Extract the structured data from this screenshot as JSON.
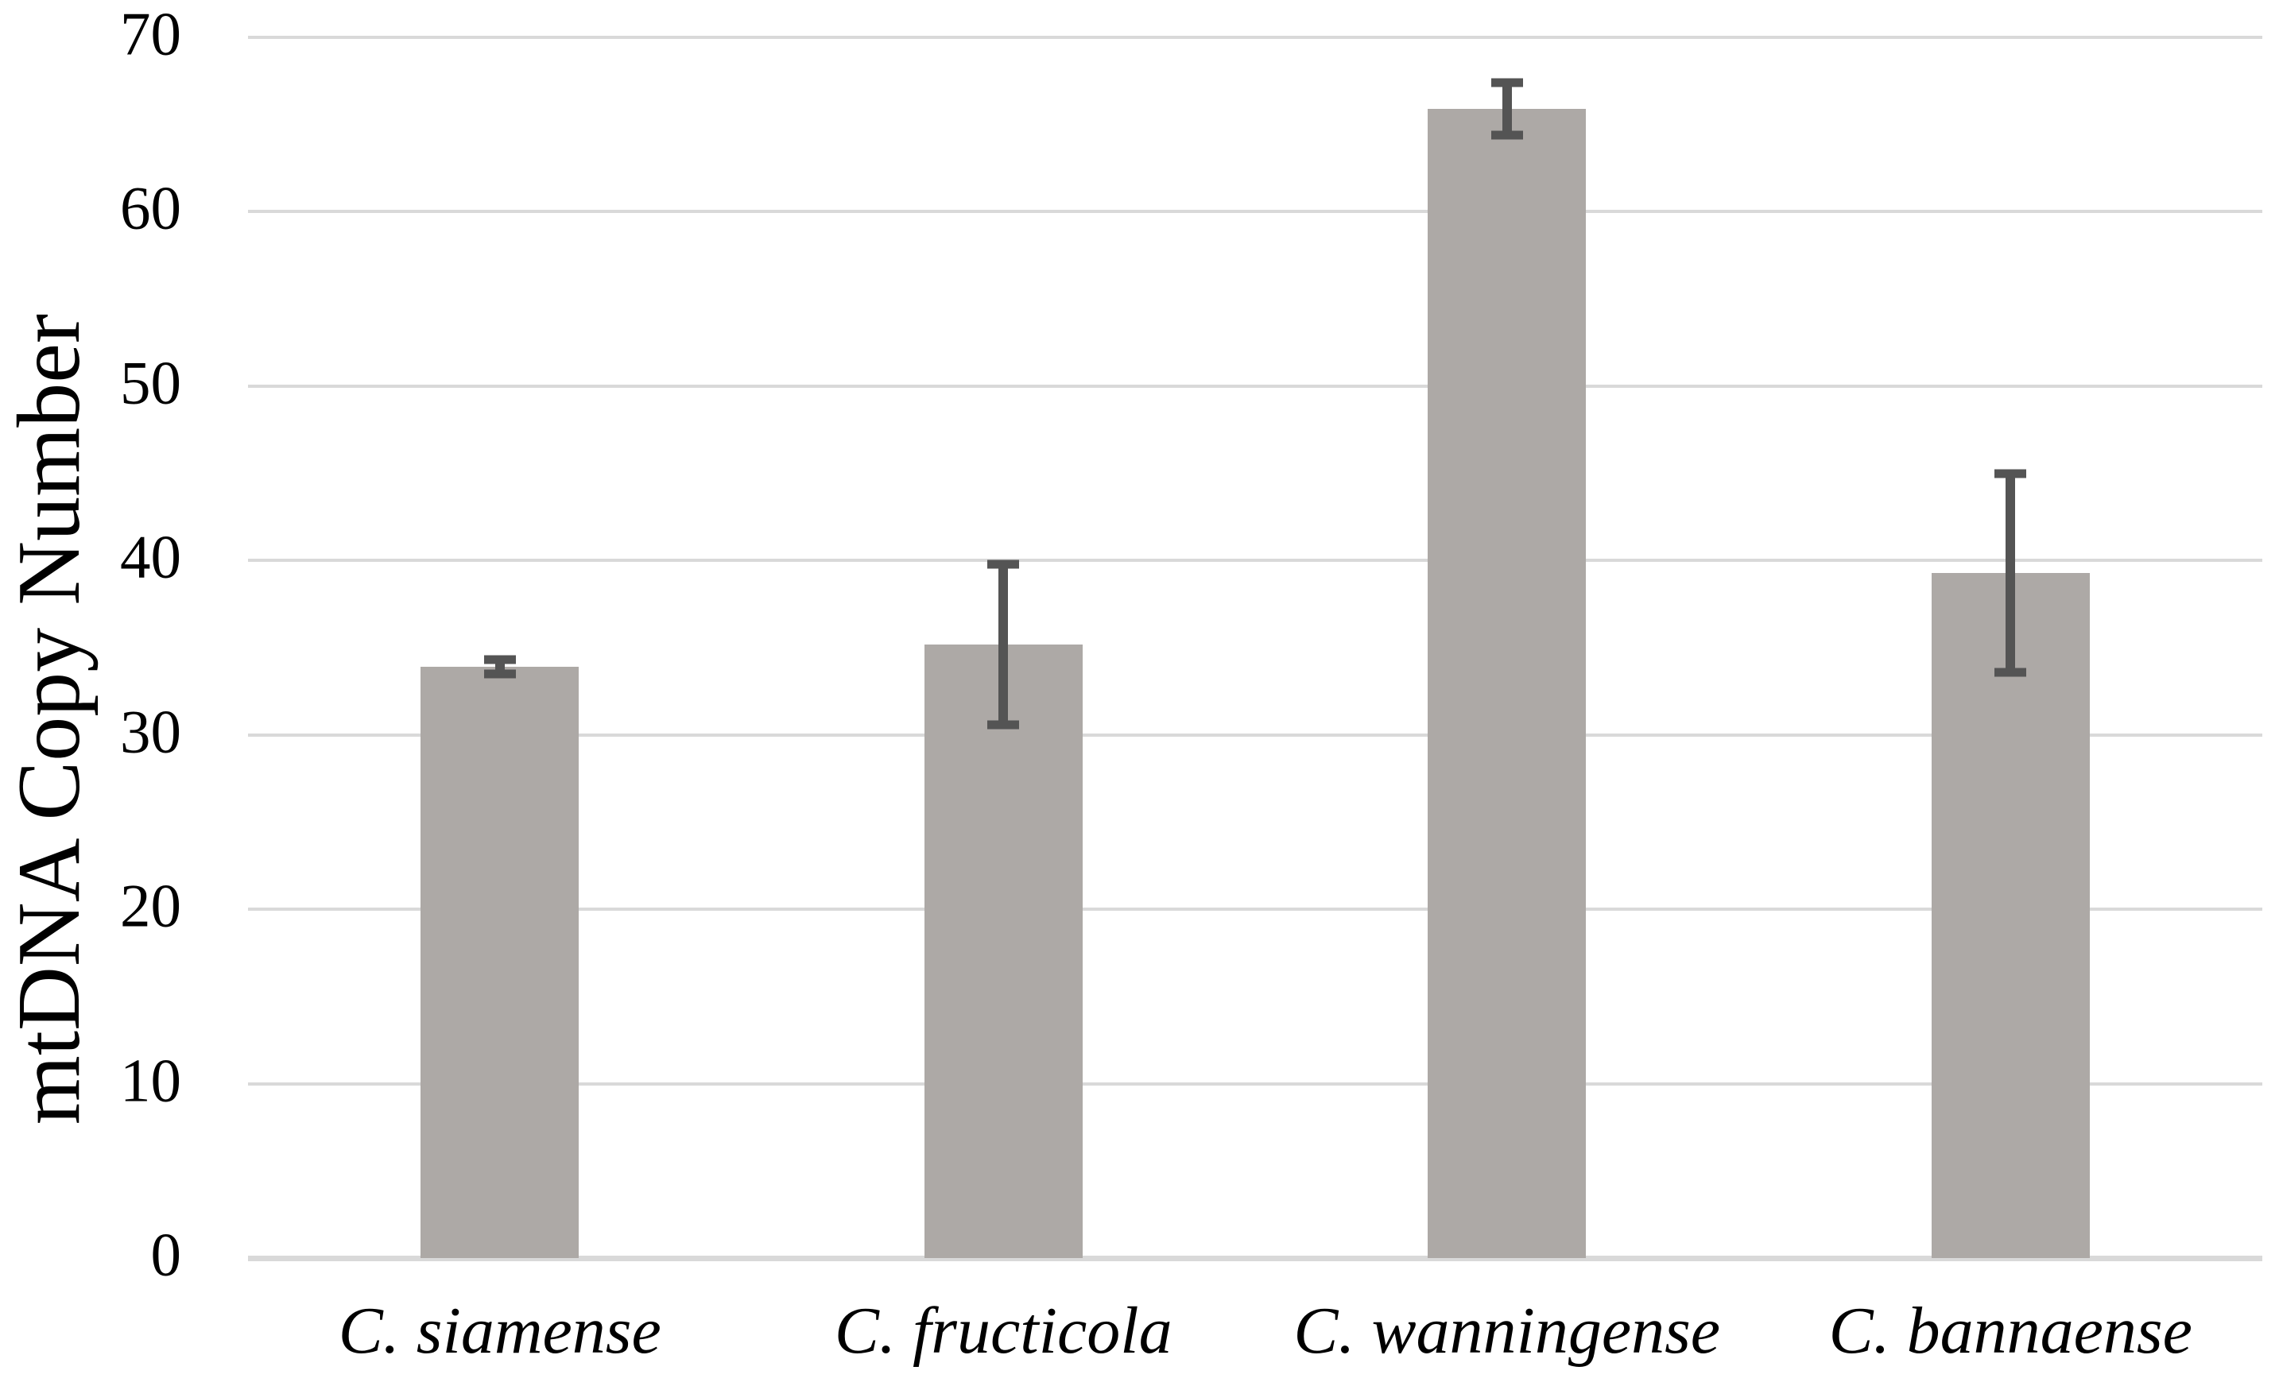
{
  "chart_data": {
    "type": "bar",
    "title": "",
    "ylabel": "mtDNA Copy Number",
    "xlabel": "",
    "categories": [
      "C. siamense",
      "C. fructicola",
      "C. wanningense",
      "C. bannaense"
    ],
    "values": [
      33.9,
      35.2,
      65.9,
      39.3
    ],
    "error_bars": [
      0.4,
      4.6,
      1.5,
      5.7
    ],
    "ylim": [
      0,
      70
    ],
    "yticks": [
      0,
      10,
      20,
      30,
      40,
      50,
      60,
      70
    ],
    "grid": true,
    "legend_position": "none",
    "bar_color": "#ada9a6",
    "error_bar_color": "#545454",
    "gridline_color": "#d9d9d9",
    "axis_line_color": "#d9d9d9",
    "text_color": "#000000"
  }
}
